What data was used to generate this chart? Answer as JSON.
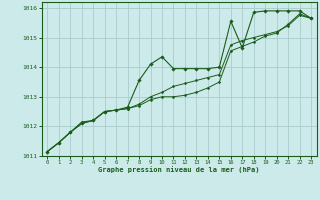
{
  "title": "Graphe pression niveau de la mer (hPa)",
  "bg_color": "#cceaea",
  "grid_color": "#aacccc",
  "line_color": "#1a5c1a",
  "marker_color": "#1a5c1a",
  "xlim": [
    -0.5,
    23.5
  ],
  "ylim": [
    1011,
    1016.2
  ],
  "xticks": [
    0,
    1,
    2,
    3,
    4,
    5,
    6,
    7,
    8,
    9,
    10,
    11,
    12,
    13,
    14,
    15,
    16,
    17,
    18,
    19,
    20,
    21,
    22,
    23
  ],
  "yticks": [
    1011,
    1012,
    1013,
    1014,
    1015,
    1016
  ],
  "series": [
    [
      1011.15,
      1011.45,
      1011.8,
      1012.1,
      1012.2,
      1012.5,
      1012.55,
      1012.65,
      1013.55,
      1014.1,
      1014.35,
      1013.95,
      1013.95,
      1013.95,
      1013.95,
      1014.0,
      1015.55,
      1014.65,
      1015.85,
      1015.9,
      1015.9,
      1015.9,
      1015.9,
      1015.65
    ],
    [
      1011.15,
      1011.45,
      1011.8,
      1012.15,
      1012.2,
      1012.5,
      1012.55,
      1012.6,
      1012.7,
      1012.9,
      1013.0,
      1013.0,
      1013.05,
      1013.15,
      1013.3,
      1013.5,
      1014.55,
      1014.7,
      1014.85,
      1015.05,
      1015.15,
      1015.45,
      1015.8,
      1015.65
    ],
    [
      1011.15,
      1011.45,
      1011.8,
      1012.1,
      1012.2,
      1012.5,
      1012.55,
      1012.6,
      1012.75,
      1013.0,
      1013.15,
      1013.35,
      1013.45,
      1013.55,
      1013.65,
      1013.75,
      1014.75,
      1014.9,
      1015.0,
      1015.1,
      1015.2,
      1015.4,
      1015.75,
      1015.65
    ]
  ]
}
